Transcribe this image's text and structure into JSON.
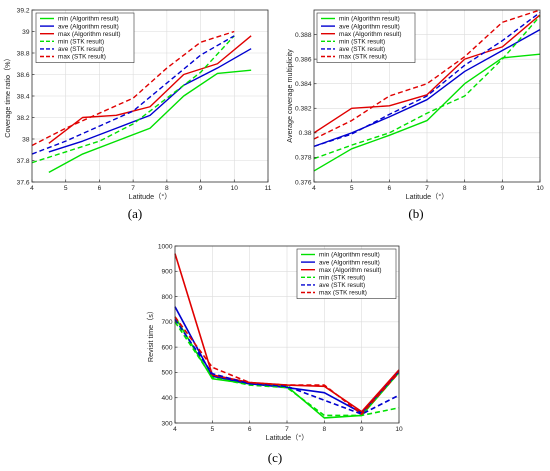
{
  "chart_data": [
    {
      "type": "line",
      "panel_label": "(a)",
      "xlabel": "Latitude（°）",
      "ylabel": "Coverage time ratio（%）",
      "xlim": [
        4,
        11
      ],
      "ylim": [
        37.6,
        39.2
      ],
      "xticks": [
        "4",
        "5",
        "6",
        "7",
        "8",
        "9",
        "10",
        "11"
      ],
      "yticks": [
        "37.6",
        "37.8",
        "38",
        "38.2",
        "38.4",
        "38.6",
        "38.8",
        "39",
        "39.2"
      ],
      "grid": true,
      "legend_position": "top-left",
      "series": [
        {
          "name": "min (Algorithm result)",
          "color": "#00e000",
          "dash": "solid",
          "x": [
            4.5,
            5.5,
            6.5,
            7.5,
            8.5,
            9.5,
            10.5
          ],
          "values": [
            37.69,
            37.86,
            37.98,
            38.1,
            38.4,
            38.61,
            38.64
          ]
        },
        {
          "name": "ave (Algorithm result)",
          "color": "#0000d0",
          "dash": "solid",
          "x": [
            4.5,
            5.5,
            6.5,
            7.5,
            8.5,
            9.5,
            10.5
          ],
          "values": [
            37.88,
            37.98,
            38.1,
            38.22,
            38.5,
            38.66,
            38.84
          ]
        },
        {
          "name": "max (Algorithm result)",
          "color": "#e00000",
          "dash": "solid",
          "x": [
            4.5,
            5.5,
            6.5,
            7.5,
            8.5,
            9.5,
            10.5
          ],
          "values": [
            37.96,
            38.2,
            38.22,
            38.3,
            38.6,
            38.7,
            38.96
          ]
        },
        {
          "name": "min (STK result)",
          "color": "#00e000",
          "dash": "dashed",
          "x": [
            4,
            5,
            6,
            7,
            8,
            9,
            10
          ],
          "values": [
            37.78,
            37.88,
            37.98,
            38.14,
            38.38,
            38.62,
            38.96
          ]
        },
        {
          "name": "ave (STK result)",
          "color": "#0000d0",
          "dash": "dashed",
          "x": [
            4,
            5,
            6,
            7,
            8,
            9,
            10
          ],
          "values": [
            37.86,
            37.98,
            38.12,
            38.26,
            38.52,
            38.78,
            38.96
          ]
        },
        {
          "name": "max (STK result)",
          "color": "#e00000",
          "dash": "dashed",
          "x": [
            4,
            5,
            6,
            7,
            8,
            9,
            10
          ],
          "values": [
            37.94,
            38.1,
            38.24,
            38.38,
            38.66,
            38.9,
            39.0
          ]
        }
      ]
    },
    {
      "type": "line",
      "panel_label": "(b)",
      "xlabel": "Latitude（°）",
      "ylabel": "Average coverage multiplicity",
      "xlim": [
        4,
        10
      ],
      "ylim": [
        0.376,
        0.39
      ],
      "xticks": [
        "4",
        "5",
        "6",
        "7",
        "8",
        "9",
        "10"
      ],
      "yticks": [
        "0.376",
        "0.378",
        "0.38",
        "0.382",
        "0.384",
        "0.386",
        "0.388"
      ],
      "grid": true,
      "legend_position": "top-left",
      "series": [
        {
          "name": "min (Algorithm result)",
          "color": "#00e000",
          "dash": "solid",
          "x": [
            4,
            5,
            6,
            7,
            8,
            9,
            10
          ],
          "values": [
            0.3769,
            0.3787,
            0.3798,
            0.381,
            0.384,
            0.3861,
            0.3864
          ]
        },
        {
          "name": "ave (Algorithm result)",
          "color": "#0000d0",
          "dash": "solid",
          "x": [
            4,
            5,
            6,
            7,
            8,
            9,
            10
          ],
          "values": [
            0.3789,
            0.38,
            0.3813,
            0.3827,
            0.385,
            0.3867,
            0.3884
          ]
        },
        {
          "name": "max (Algorithm result)",
          "color": "#e00000",
          "dash": "solid",
          "x": [
            4,
            5,
            6,
            7,
            8,
            9,
            10
          ],
          "values": [
            0.38,
            0.382,
            0.3822,
            0.3831,
            0.386,
            0.387,
            0.3896
          ]
        },
        {
          "name": "min (STK result)",
          "color": "#00e000",
          "dash": "dashed",
          "x": [
            4,
            5,
            6,
            7,
            8,
            9,
            10
          ],
          "values": [
            0.3779,
            0.379,
            0.38,
            0.3816,
            0.383,
            0.386,
            0.3895
          ]
        },
        {
          "name": "ave (STK result)",
          "color": "#0000d0",
          "dash": "dashed",
          "x": [
            4,
            5,
            6,
            7,
            8,
            9,
            10
          ],
          "values": [
            0.3789,
            0.3799,
            0.3815,
            0.383,
            0.3855,
            0.3875,
            0.3898
          ]
        },
        {
          "name": "max (STK result)",
          "color": "#e00000",
          "dash": "dashed",
          "x": [
            4,
            5,
            6,
            7,
            8,
            9,
            10
          ],
          "values": [
            0.3795,
            0.381,
            0.383,
            0.384,
            0.3862,
            0.389,
            0.39
          ]
        }
      ]
    },
    {
      "type": "line",
      "panel_label": "(c)",
      "xlabel": "Latitude（°）",
      "ylabel": "Revisit time（s）",
      "xlim": [
        4,
        10
      ],
      "ylim": [
        300,
        1000
      ],
      "xticks": [
        "4",
        "5",
        "6",
        "7",
        "8",
        "9",
        "10"
      ],
      "yticks": [
        "300",
        "400",
        "500",
        "600",
        "700",
        "800",
        "900",
        "1000"
      ],
      "grid": true,
      "legend_position": "top-right",
      "series": [
        {
          "name": "min (Algorithm result)",
          "color": "#00e000",
          "dash": "solid",
          "x": [
            4,
            5,
            6,
            7,
            8,
            9,
            10
          ],
          "values": [
            720,
            475,
            455,
            445,
            320,
            330,
            500
          ]
        },
        {
          "name": "ave (Algorithm result)",
          "color": "#0000d0",
          "dash": "solid",
          "x": [
            4,
            5,
            6,
            7,
            8,
            9,
            10
          ],
          "values": [
            760,
            485,
            455,
            440,
            420,
            340,
            505
          ]
        },
        {
          "name": "max (Algorithm result)",
          "color": "#e00000",
          "dash": "solid",
          "x": [
            4,
            5,
            6,
            7,
            8,
            9,
            10
          ],
          "values": [
            970,
            490,
            460,
            450,
            445,
            345,
            510
          ]
        },
        {
          "name": "min (STK result)",
          "color": "#00e000",
          "dash": "dashed",
          "x": [
            4,
            5,
            6,
            7,
            8,
            9,
            10
          ],
          "values": [
            700,
            480,
            450,
            440,
            330,
            330,
            360
          ]
        },
        {
          "name": "ave (STK result)",
          "color": "#0000d0",
          "dash": "dashed",
          "x": [
            4,
            5,
            6,
            7,
            8,
            9,
            10
          ],
          "values": [
            710,
            495,
            455,
            445,
            390,
            335,
            410
          ]
        },
        {
          "name": "max (STK result)",
          "color": "#e00000",
          "dash": "dashed",
          "x": [
            4,
            5,
            6,
            7,
            8,
            9,
            10
          ],
          "values": [
            720,
            520,
            460,
            450,
            450,
            335,
            500
          ]
        }
      ]
    }
  ]
}
